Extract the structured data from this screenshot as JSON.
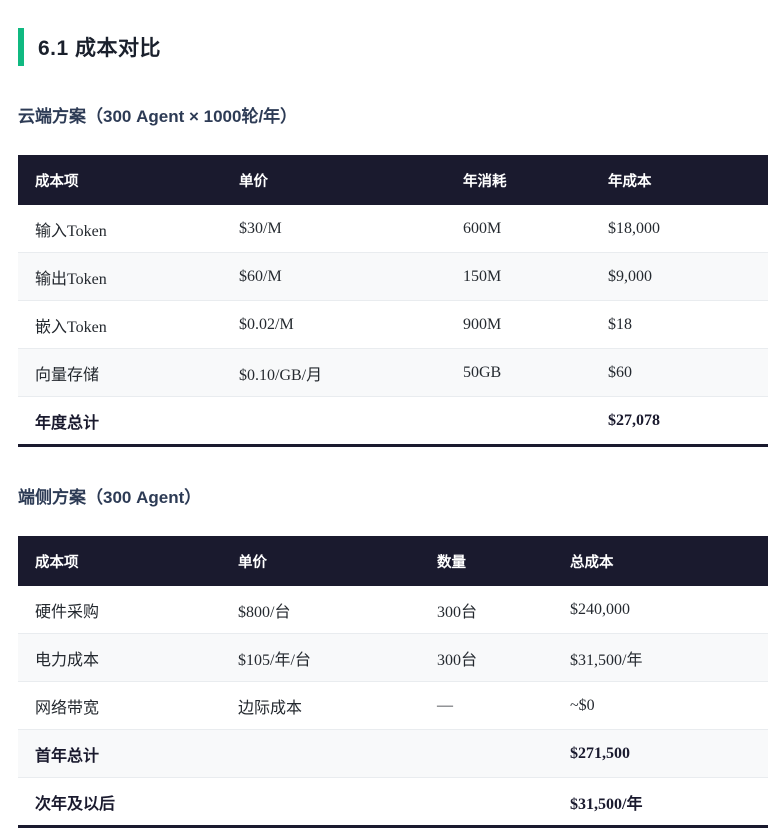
{
  "page": {
    "heading": "6.1 成本对比"
  },
  "colors": {
    "accent_green": "#10b981",
    "table_header_bg": "#1a1a2e",
    "table_header_text": "#ffffff",
    "zebra_row_bg": "#f8f9fa",
    "row_divider": "#e9ecef",
    "heading_text": "#1a202c",
    "section_title_text": "#2d3b55",
    "body_text": "#24292f"
  },
  "sections": [
    {
      "title": "云端方案（300 Agent × 1000轮/年）",
      "table": {
        "columns": [
          "成本项",
          "单价",
          "年消耗",
          "年成本"
        ],
        "rows": [
          {
            "bold": false,
            "cells": [
              "输入Token",
              "$30/M",
              "600M",
              "$18,000"
            ]
          },
          {
            "bold": false,
            "cells": [
              "输出Token",
              "$60/M",
              "150M",
              "$9,000"
            ]
          },
          {
            "bold": false,
            "cells": [
              "嵌入Token",
              "$0.02/M",
              "900M",
              "$18"
            ]
          },
          {
            "bold": false,
            "cells": [
              "向量存储",
              "$0.10/GB/月",
              "50GB",
              "$60"
            ]
          },
          {
            "bold": true,
            "cells": [
              "年度总计",
              "",
              "",
              "$27,078"
            ]
          }
        ]
      }
    },
    {
      "title": "端侧方案（300 Agent）",
      "table": {
        "columns": [
          "成本项",
          "单价",
          "数量",
          "总成本"
        ],
        "rows": [
          {
            "bold": false,
            "cells": [
              "硬件采购",
              "$800/台",
              "300台",
              "$240,000"
            ]
          },
          {
            "bold": false,
            "cells": [
              "电力成本",
              "$105/年/台",
              "300台",
              "$31,500/年"
            ]
          },
          {
            "bold": false,
            "cells": [
              "网络带宽",
              "边际成本",
              "—",
              "~$0"
            ]
          },
          {
            "bold": true,
            "cells": [
              "首年总计",
              "",
              "",
              "$271,500"
            ]
          },
          {
            "bold": true,
            "cells": [
              "次年及以后",
              "",
              "",
              "$31,500/年"
            ]
          }
        ]
      }
    }
  ]
}
